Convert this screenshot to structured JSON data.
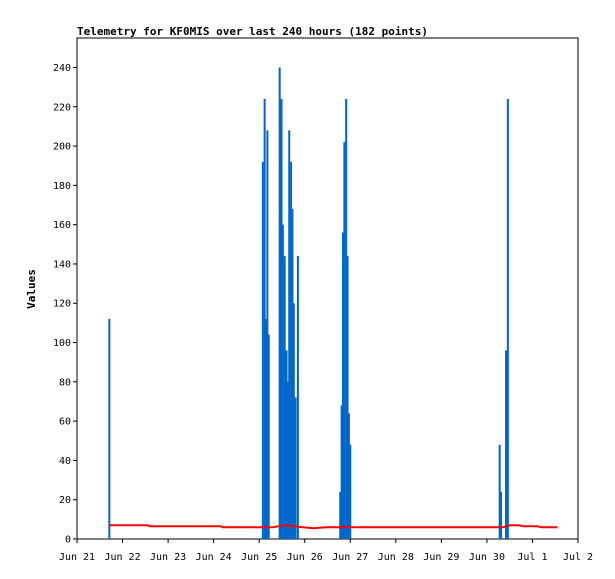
{
  "chart_data": {
    "type": "bar",
    "title": "Telemetry for KF0MIS over last 240 hours (182 points)",
    "xlabel": "",
    "ylabel": "Values",
    "xlim": [
      "Jun 21",
      "Jul 2"
    ],
    "ylim": [
      0,
      255
    ],
    "x_ticks": [
      "Jun 21",
      "Jun 22",
      "Jun 23",
      "Jun 24",
      "Jun 25",
      "Jun 26",
      "Jun 27",
      "Jun 28",
      "Jun 29",
      "Jun 30",
      "Jul 1",
      "Jul 2"
    ],
    "y_ticks": [
      0,
      20,
      40,
      60,
      80,
      100,
      120,
      140,
      160,
      180,
      200,
      220,
      240
    ],
    "grid": false,
    "colors": {
      "bars": "#0066cc",
      "line": "#ff0000",
      "axis": "#000000"
    },
    "series": [
      {
        "type": "bar",
        "points": [
          {
            "day": 0.71,
            "value": 112
          },
          {
            "day": 4.08,
            "value": 192
          },
          {
            "day": 4.12,
            "value": 224
          },
          {
            "day": 4.15,
            "value": 112
          },
          {
            "day": 4.18,
            "value": 208
          },
          {
            "day": 4.21,
            "value": 104
          },
          {
            "day": 4.45,
            "value": 240
          },
          {
            "day": 4.49,
            "value": 224
          },
          {
            "day": 4.52,
            "value": 160
          },
          {
            "day": 4.56,
            "value": 144
          },
          {
            "day": 4.6,
            "value": 96
          },
          {
            "day": 4.63,
            "value": 80
          },
          {
            "day": 4.66,
            "value": 208
          },
          {
            "day": 4.7,
            "value": 192
          },
          {
            "day": 4.73,
            "value": 168
          },
          {
            "day": 4.76,
            "value": 120
          },
          {
            "day": 4.8,
            "value": 72
          },
          {
            "day": 4.85,
            "value": 144
          },
          {
            "day": 5.78,
            "value": 24
          },
          {
            "day": 5.81,
            "value": 68
          },
          {
            "day": 5.84,
            "value": 156
          },
          {
            "day": 5.87,
            "value": 202
          },
          {
            "day": 5.91,
            "value": 224
          },
          {
            "day": 5.94,
            "value": 144
          },
          {
            "day": 5.97,
            "value": 64
          },
          {
            "day": 6.0,
            "value": 48
          },
          {
            "day": 9.28,
            "value": 48
          },
          {
            "day": 9.31,
            "value": 24
          },
          {
            "day": 9.42,
            "value": 96
          },
          {
            "day": 9.46,
            "value": 224
          }
        ]
      },
      {
        "type": "line",
        "points": [
          {
            "day": 0.7,
            "value": 7
          },
          {
            "day": 1.55,
            "value": 7
          },
          {
            "day": 1.6,
            "value": 6.5
          },
          {
            "day": 3.15,
            "value": 6.5
          },
          {
            "day": 3.2,
            "value": 6
          },
          {
            "day": 4.3,
            "value": 6
          },
          {
            "day": 4.55,
            "value": 7
          },
          {
            "day": 4.95,
            "value": 6
          },
          {
            "day": 5.2,
            "value": 5.5
          },
          {
            "day": 5.45,
            "value": 6
          },
          {
            "day": 5.75,
            "value": 6
          },
          {
            "day": 6.05,
            "value": 6
          },
          {
            "day": 9.35,
            "value": 6
          },
          {
            "day": 9.5,
            "value": 7
          },
          {
            "day": 9.7,
            "value": 7
          },
          {
            "day": 9.8,
            "value": 6.5
          },
          {
            "day": 10.1,
            "value": 6.5
          },
          {
            "day": 10.2,
            "value": 6
          },
          {
            "day": 10.55,
            "value": 6
          }
        ]
      }
    ]
  }
}
